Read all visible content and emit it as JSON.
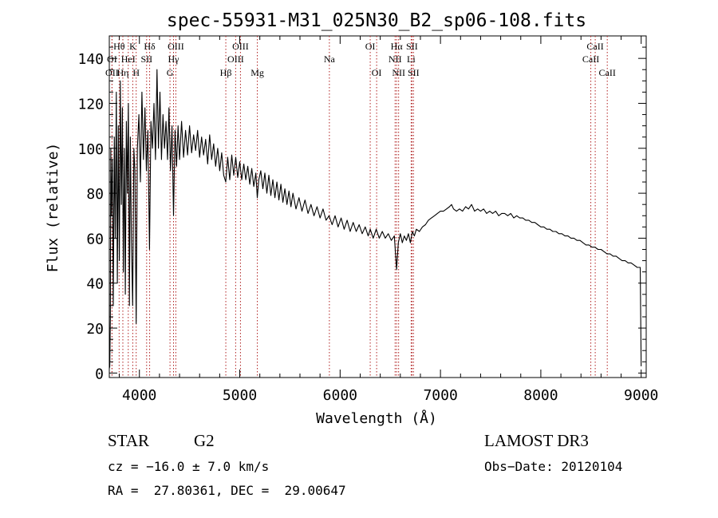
{
  "chart_data": {
    "type": "line",
    "title": "spec-55931-M31_025N30_B2_sp06-108.fits",
    "xlabel": "Wavelength (Å)",
    "ylabel": "Flux (relative)",
    "xlim": [
      3700,
      9050
    ],
    "ylim": [
      -2,
      150
    ],
    "xticks": [
      4000,
      5000,
      6000,
      7000,
      8000,
      9000
    ],
    "yticks": [
      0,
      20,
      40,
      60,
      80,
      100,
      120,
      140
    ],
    "series": [
      {
        "name": "flux",
        "points": [
          [
            3700,
            2
          ],
          [
            3705,
            3
          ],
          [
            3710,
            24
          ],
          [
            3715,
            100
          ],
          [
            3720,
            70
          ],
          [
            3730,
            95
          ],
          [
            3740,
            30
          ],
          [
            3750,
            105
          ],
          [
            3760,
            60
          ],
          [
            3770,
            125
          ],
          [
            3780,
            40
          ],
          [
            3790,
            110
          ],
          [
            3800,
            50
          ],
          [
            3810,
            130
          ],
          [
            3820,
            75
          ],
          [
            3830,
            118
          ],
          [
            3840,
            45
          ],
          [
            3850,
            100
          ],
          [
            3860,
            35
          ],
          [
            3870,
            112
          ],
          [
            3880,
            80
          ],
          [
            3890,
            120
          ],
          [
            3900,
            30
          ],
          [
            3910,
            105
          ],
          [
            3920,
            60
          ],
          [
            3933,
            30
          ],
          [
            3945,
            100
          ],
          [
            3955,
            90
          ],
          [
            3968,
            22
          ],
          [
            3980,
            100
          ],
          [
            3995,
            115
          ],
          [
            4010,
            85
          ],
          [
            4025,
            125
          ],
          [
            4040,
            95
          ],
          [
            4055,
            118
          ],
          [
            4070,
            90
          ],
          [
            4085,
            108
          ],
          [
            4101,
            55
          ],
          [
            4115,
            112
          ],
          [
            4130,
            100
          ],
          [
            4145,
            120
          ],
          [
            4160,
            95
          ],
          [
            4175,
            135
          ],
          [
            4190,
            100
          ],
          [
            4205,
            125
          ],
          [
            4220,
            95
          ],
          [
            4235,
            115
          ],
          [
            4250,
            100
          ],
          [
            4265,
            112
          ],
          [
            4280,
            95
          ],
          [
            4295,
            118
          ],
          [
            4310,
            90
          ],
          [
            4325,
            110
          ],
          [
            4340,
            70
          ],
          [
            4355,
            108
          ],
          [
            4370,
            92
          ],
          [
            4385,
            110
          ],
          [
            4400,
            95
          ],
          [
            4420,
            112
          ],
          [
            4440,
            96
          ],
          [
            4460,
            108
          ],
          [
            4480,
            97
          ],
          [
            4500,
            110
          ],
          [
            4520,
            98
          ],
          [
            4540,
            106
          ],
          [
            4560,
            99
          ],
          [
            4580,
            108
          ],
          [
            4600,
            96
          ],
          [
            4620,
            105
          ],
          [
            4640,
            97
          ],
          [
            4660,
            104
          ],
          [
            4680,
            93
          ],
          [
            4700,
            106
          ],
          [
            4720,
            95
          ],
          [
            4740,
            102
          ],
          [
            4760,
            92
          ],
          [
            4780,
            100
          ],
          [
            4800,
            90
          ],
          [
            4820,
            98
          ],
          [
            4840,
            88
          ],
          [
            4861,
            85
          ],
          [
            4880,
            96
          ],
          [
            4900,
            86
          ],
          [
            4920,
            97
          ],
          [
            4940,
            88
          ],
          [
            4960,
            96
          ],
          [
            4980,
            87
          ],
          [
            5000,
            94
          ],
          [
            5020,
            86
          ],
          [
            5040,
            93
          ],
          [
            5060,
            86
          ],
          [
            5080,
            92
          ],
          [
            5100,
            84
          ],
          [
            5120,
            91
          ],
          [
            5140,
            83
          ],
          [
            5160,
            89
          ],
          [
            5175,
            78
          ],
          [
            5190,
            86
          ],
          [
            5210,
            90
          ],
          [
            5230,
            82
          ],
          [
            5250,
            89
          ],
          [
            5270,
            80
          ],
          [
            5290,
            88
          ],
          [
            5310,
            79
          ],
          [
            5330,
            86
          ],
          [
            5350,
            78
          ],
          [
            5370,
            85
          ],
          [
            5390,
            77
          ],
          [
            5410,
            84
          ],
          [
            5430,
            76
          ],
          [
            5450,
            82
          ],
          [
            5470,
            75
          ],
          [
            5490,
            81
          ],
          [
            5510,
            74
          ],
          [
            5530,
            80
          ],
          [
            5560,
            73
          ],
          [
            5590,
            78
          ],
          [
            5620,
            72
          ],
          [
            5650,
            77
          ],
          [
            5680,
            71
          ],
          [
            5710,
            75
          ],
          [
            5740,
            70
          ],
          [
            5770,
            74
          ],
          [
            5800,
            69
          ],
          [
            5830,
            73
          ],
          [
            5860,
            68
          ],
          [
            5890,
            70
          ],
          [
            5920,
            66
          ],
          [
            5950,
            70
          ],
          [
            5980,
            65
          ],
          [
            6010,
            69
          ],
          [
            6040,
            64
          ],
          [
            6070,
            68
          ],
          [
            6100,
            63
          ],
          [
            6130,
            67
          ],
          [
            6160,
            63
          ],
          [
            6190,
            66
          ],
          [
            6220,
            62
          ],
          [
            6250,
            65
          ],
          [
            6280,
            61
          ],
          [
            6300,
            64
          ],
          [
            6330,
            60
          ],
          [
            6360,
            64
          ],
          [
            6390,
            60
          ],
          [
            6420,
            63
          ],
          [
            6450,
            60
          ],
          [
            6480,
            62
          ],
          [
            6510,
            59
          ],
          [
            6540,
            61
          ],
          [
            6563,
            46
          ],
          [
            6580,
            58
          ],
          [
            6600,
            62
          ],
          [
            6620,
            58
          ],
          [
            6640,
            61
          ],
          [
            6660,
            59
          ],
          [
            6680,
            62
          ],
          [
            6700,
            58
          ],
          [
            6720,
            63
          ],
          [
            6740,
            61
          ],
          [
            6760,
            64
          ],
          [
            6790,
            63
          ],
          [
            6820,
            65
          ],
          [
            6850,
            66
          ],
          [
            6880,
            68
          ],
          [
            6910,
            69
          ],
          [
            6940,
            70
          ],
          [
            6970,
            71
          ],
          [
            7000,
            72
          ],
          [
            7030,
            72
          ],
          [
            7060,
            73
          ],
          [
            7090,
            74
          ],
          [
            7110,
            75
          ],
          [
            7130,
            73
          ],
          [
            7160,
            72
          ],
          [
            7190,
            73
          ],
          [
            7220,
            72
          ],
          [
            7250,
            74
          ],
          [
            7280,
            73
          ],
          [
            7310,
            75
          ],
          [
            7340,
            72
          ],
          [
            7370,
            73
          ],
          [
            7400,
            72
          ],
          [
            7430,
            73
          ],
          [
            7460,
            71
          ],
          [
            7490,
            72
          ],
          [
            7520,
            71
          ],
          [
            7550,
            72
          ],
          [
            7580,
            70
          ],
          [
            7610,
            71
          ],
          [
            7640,
            71
          ],
          [
            7670,
            70
          ],
          [
            7700,
            71
          ],
          [
            7730,
            69
          ],
          [
            7760,
            70
          ],
          [
            7790,
            69
          ],
          [
            7820,
            69
          ],
          [
            7850,
            68
          ],
          [
            7880,
            68
          ],
          [
            7910,
            67
          ],
          [
            7940,
            67
          ],
          [
            7970,
            66
          ],
          [
            8000,
            65
          ],
          [
            8030,
            65
          ],
          [
            8060,
            64
          ],
          [
            8090,
            64
          ],
          [
            8120,
            63
          ],
          [
            8150,
            63
          ],
          [
            8180,
            62
          ],
          [
            8210,
            62
          ],
          [
            8240,
            61
          ],
          [
            8270,
            61
          ],
          [
            8300,
            60
          ],
          [
            8330,
            60
          ],
          [
            8360,
            59
          ],
          [
            8390,
            59
          ],
          [
            8420,
            58
          ],
          [
            8450,
            57
          ],
          [
            8480,
            57
          ],
          [
            8510,
            56
          ],
          [
            8540,
            56
          ],
          [
            8570,
            55
          ],
          [
            8600,
            55
          ],
          [
            8630,
            54
          ],
          [
            8660,
            53
          ],
          [
            8690,
            53
          ],
          [
            8720,
            52
          ],
          [
            8750,
            52
          ],
          [
            8780,
            51
          ],
          [
            8810,
            50
          ],
          [
            8840,
            50
          ],
          [
            8870,
            49
          ],
          [
            8900,
            49
          ],
          [
            8930,
            48
          ],
          [
            8960,
            47
          ],
          [
            8990,
            47
          ],
          [
            9000,
            3
          ]
        ]
      }
    ],
    "line_markers": [
      {
        "label": "Hθ",
        "wavelength": 3798,
        "row": 1
      },
      {
        "label": "K",
        "wavelength": 3934,
        "row": 1
      },
      {
        "label": "Hδ",
        "wavelength": 4102,
        "row": 1
      },
      {
        "label": "OIII",
        "wavelength": 4363,
        "row": 1
      },
      {
        "label": "OIII",
        "wavelength": 5007,
        "row": 1
      },
      {
        "label": "OI",
        "wavelength": 6300,
        "row": 1
      },
      {
        "label": "Hα",
        "wavelength": 6563,
        "row": 1
      },
      {
        "label": "SII",
        "wavelength": 6716,
        "row": 1
      },
      {
        "label": "CaII",
        "wavelength": 8542,
        "row": 1
      },
      {
        "label": "OI",
        "wavelength": 3727,
        "row": 2
      },
      {
        "label": "HeI",
        "wavelength": 3889,
        "row": 2
      },
      {
        "label": "SII",
        "wavelength": 4072,
        "row": 2
      },
      {
        "label": "Hγ",
        "wavelength": 4340,
        "row": 2
      },
      {
        "label": "OIII",
        "wavelength": 4959,
        "row": 2
      },
      {
        "label": "Na",
        "wavelength": 5893,
        "row": 2
      },
      {
        "label": "NII",
        "wavelength": 6548,
        "row": 2
      },
      {
        "label": "Li",
        "wavelength": 6708,
        "row": 2
      },
      {
        "label": "CaII",
        "wavelength": 8498,
        "row": 2
      },
      {
        "label": "OII",
        "wavelength": 3727,
        "row": 3
      },
      {
        "label": "Hη",
        "wavelength": 3835,
        "row": 3
      },
      {
        "label": "H",
        "wavelength": 3968,
        "row": 3
      },
      {
        "label": "G",
        "wavelength": 4305,
        "row": 3
      },
      {
        "label": "Hβ",
        "wavelength": 4861,
        "row": 3
      },
      {
        "label": "Mg",
        "wavelength": 5175,
        "row": 3
      },
      {
        "label": "OI",
        "wavelength": 6364,
        "row": 3
      },
      {
        "label": "NII",
        "wavelength": 6583,
        "row": 3
      },
      {
        "label": "SII",
        "wavelength": 6731,
        "row": 3
      },
      {
        "label": "CaII",
        "wavelength": 8662,
        "row": 3
      }
    ]
  },
  "info": {
    "class": "STAR",
    "subclass": "G2",
    "survey": "LAMOST DR3",
    "cz": "cz = −16.0 ± 7.0 km/s",
    "obs_date": "Obs−Date: 20120104",
    "radec": "RA =  27.80361, DEC =  29.00647"
  },
  "colors": {
    "line": "#000000",
    "marker": "#b02020",
    "background": "#ffffff"
  }
}
